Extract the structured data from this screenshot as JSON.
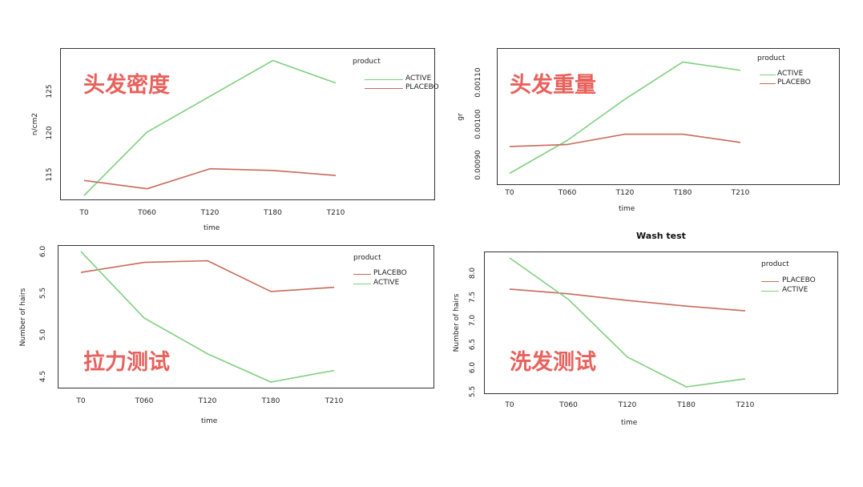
{
  "colors": {
    "active": "#7fcf7f",
    "placebo": "#c96a5a",
    "overlay_text": "#e8615c"
  },
  "chart_data": [
    {
      "type": "line",
      "overlay_label": "头发密度",
      "title": "",
      "xlabel": "time",
      "ylabel": "n/cm2",
      "categories": [
        "T0",
        "T060",
        "T120",
        "T180",
        "T210"
      ],
      "ylim": [
        112.5,
        130.0
      ],
      "yticks": [
        {
          "v": 115,
          "label": "115"
        },
        {
          "v": 120,
          "label": "120"
        },
        {
          "v": 125,
          "label": "125"
        }
      ],
      "legend": {
        "title": "product",
        "items": [
          "ACTIVE",
          "PLACEBO"
        ]
      },
      "series": [
        {
          "name": "ACTIVE",
          "color_key": "active",
          "values": [
            112.5,
            120.1,
            124.4,
            128.7,
            126.0
          ]
        },
        {
          "name": "PLACEBO",
          "color_key": "placebo",
          "values": [
            114.3,
            113.3,
            115.7,
            115.5,
            114.9
          ]
        }
      ]
    },
    {
      "type": "line",
      "overlay_label": "头发重量",
      "title": "",
      "xlabel": "time",
      "ylabel": "gr",
      "categories": [
        "T0",
        "T060",
        "T120",
        "T180",
        "T210"
      ],
      "ylim": [
        0.000875,
        0.00118
      ],
      "yticks": [
        {
          "v": 0.0009,
          "label": "0.00090"
        },
        {
          "v": 0.001,
          "label": "0.00100"
        },
        {
          "v": 0.0011,
          "label": "0.00110"
        }
      ],
      "legend": {
        "title": "product",
        "items": [
          "ACTIVE",
          "PLACEBO"
        ]
      },
      "series": [
        {
          "name": "ACTIVE",
          "color_key": "active",
          "values": [
            0.00088,
            0.00096,
            0.00106,
            0.00115,
            0.00113
          ]
        },
        {
          "name": "PLACEBO",
          "color_key": "placebo",
          "values": [
            0.000945,
            0.00095,
            0.000975,
            0.000975,
            0.000955
          ]
        }
      ]
    },
    {
      "type": "line",
      "overlay_label": "拉力测试",
      "title": "",
      "xlabel": "time",
      "ylabel": "Number of hairs",
      "categories": [
        "T0",
        "T060",
        "T120",
        "T180",
        "T210"
      ],
      "ylim": [
        4.43,
        6.03
      ],
      "yticks": [
        {
          "v": 4.5,
          "label": "4.5"
        },
        {
          "v": 5.0,
          "label": "5.0"
        },
        {
          "v": 5.5,
          "label": "5.5"
        },
        {
          "v": 6.0,
          "label": "6.0"
        }
      ],
      "legend": {
        "title": "product",
        "items": [
          "PLACEBO",
          "ACTIVE"
        ]
      },
      "series": [
        {
          "name": "PLACEBO",
          "color_key": "placebo",
          "values": [
            5.75,
            5.87,
            5.89,
            5.52,
            5.57
          ]
        },
        {
          "name": "ACTIVE",
          "color_key": "active",
          "values": [
            6.0,
            5.2,
            4.77,
            4.43,
            4.57
          ]
        }
      ]
    },
    {
      "type": "line",
      "overlay_label": "洗发测试",
      "title": "Wash test",
      "xlabel": "time",
      "ylabel": "Number of hairs",
      "categories": [
        "T0",
        "T060",
        "T120",
        "T180",
        "T210"
      ],
      "ylim": [
        5.6,
        8.33
      ],
      "yticks": [
        {
          "v": 5.5,
          "label": "5.5"
        },
        {
          "v": 6.0,
          "label": "6.0"
        },
        {
          "v": 6.5,
          "label": "6.5"
        },
        {
          "v": 7.0,
          "label": "7.0"
        },
        {
          "v": 7.5,
          "label": "7.5"
        },
        {
          "v": 8.0,
          "label": "8.0"
        }
      ],
      "legend": {
        "title": "product",
        "items": [
          "PLACEBO",
          "ACTIVE"
        ]
      },
      "series": [
        {
          "name": "PLACEBO",
          "color_key": "placebo",
          "values": [
            7.67,
            7.57,
            7.43,
            7.31,
            7.21
          ]
        },
        {
          "name": "ACTIVE",
          "color_key": "active",
          "values": [
            8.33,
            7.45,
            6.23,
            5.6,
            5.77
          ]
        }
      ]
    }
  ]
}
